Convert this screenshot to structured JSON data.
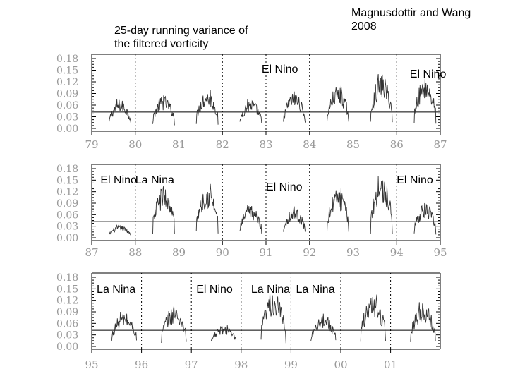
{
  "title_lines": [
    "25-day running variance of",
    "the filtered vorticity"
  ],
  "citation_lines": [
    "Magnusdottir and Wang",
    "2008"
  ],
  "chart_data": [
    {
      "type": "line",
      "panel": 1,
      "ylim": [
        0,
        0.18
      ],
      "yticks": [
        "0.18",
        "0.15",
        "0.12",
        "0.09",
        "0.06",
        "0.03",
        "0.00"
      ],
      "xlim": [
        79,
        87
      ],
      "xticks": [
        "79",
        "80",
        "81",
        "82",
        "83",
        "84",
        "85",
        "86",
        "87"
      ],
      "threshold": 0.042,
      "annotations": [
        {
          "text": "El Nino",
          "x": 82.9
        },
        {
          "text": "El Nino",
          "x": 86.3
        }
      ],
      "seasons": [
        {
          "start": 79.4,
          "end": 79.9,
          "peak": 0.075
        },
        {
          "start": 80.4,
          "end": 80.9,
          "peak": 0.085
        },
        {
          "start": 81.4,
          "end": 81.9,
          "peak": 0.1
        },
        {
          "start": 82.4,
          "end": 82.9,
          "peak": 0.075
        },
        {
          "start": 83.4,
          "end": 83.9,
          "peak": 0.095
        },
        {
          "start": 84.4,
          "end": 84.9,
          "peak": 0.11
        },
        {
          "start": 85.4,
          "end": 85.9,
          "peak": 0.14
        },
        {
          "start": 86.4,
          "end": 86.9,
          "peak": 0.13
        }
      ]
    },
    {
      "type": "line",
      "panel": 2,
      "ylim": [
        0,
        0.18
      ],
      "yticks": [
        "0.18",
        "0.15",
        "0.12",
        "0.09",
        "0.06",
        "0.03",
        "0.00"
      ],
      "xlim": [
        87,
        95
      ],
      "xticks": [
        "87",
        "88",
        "89",
        "90",
        "91",
        "92",
        "93",
        "94",
        "95"
      ],
      "threshold": 0.042,
      "annotations": [
        {
          "text": "El Nino",
          "x": 87.2
        },
        {
          "text": "La Nina",
          "x": 88.0
        },
        {
          "text": "El Nino",
          "x": 91.0
        },
        {
          "text": "El Nino",
          "x": 94.0
        }
      ],
      "seasons": [
        {
          "start": 87.4,
          "end": 87.9,
          "peak": 0.032
        },
        {
          "start": 88.4,
          "end": 88.9,
          "peak": 0.135
        },
        {
          "start": 89.4,
          "end": 89.9,
          "peak": 0.14
        },
        {
          "start": 90.4,
          "end": 90.9,
          "peak": 0.085
        },
        {
          "start": 91.4,
          "end": 91.9,
          "peak": 0.08
        },
        {
          "start": 92.4,
          "end": 92.9,
          "peak": 0.13
        },
        {
          "start": 93.4,
          "end": 93.9,
          "peak": 0.16
        },
        {
          "start": 94.4,
          "end": 94.9,
          "peak": 0.09
        }
      ]
    },
    {
      "type": "line",
      "panel": 3,
      "ylim": [
        0,
        0.18
      ],
      "yticks": [
        "0.18",
        "0.15",
        "0.12",
        "0.09",
        "0.06",
        "0.03",
        "0.00"
      ],
      "xlim": [
        95,
        102
      ],
      "xticks": [
        "95",
        "96",
        "97",
        "98",
        "99",
        "00",
        "01"
      ],
      "threshold": 0.042,
      "annotations": [
        {
          "text": "La Nina",
          "x": 95.1
        },
        {
          "text": "El Nino",
          "x": 97.1
        },
        {
          "text": "La Nina",
          "x": 98.2
        },
        {
          "text": "La Nina",
          "x": 99.1
        }
      ],
      "seasons": [
        {
          "start": 95.4,
          "end": 95.9,
          "peak": 0.09
        },
        {
          "start": 96.4,
          "end": 96.9,
          "peak": 0.105
        },
        {
          "start": 97.4,
          "end": 97.9,
          "peak": 0.055
        },
        {
          "start": 98.4,
          "end": 98.9,
          "peak": 0.14
        },
        {
          "start": 99.4,
          "end": 99.9,
          "peak": 0.085
        },
        {
          "start": 100.4,
          "end": 100.9,
          "peak": 0.135
        },
        {
          "start": 101.4,
          "end": 101.9,
          "peak": 0.115
        }
      ]
    }
  ]
}
